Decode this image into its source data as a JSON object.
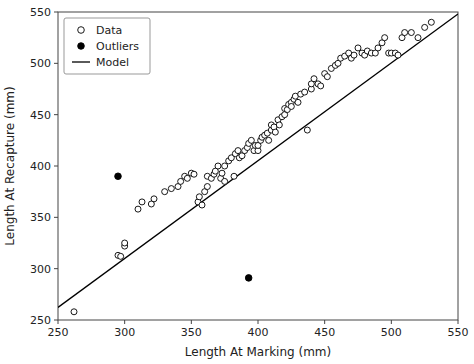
{
  "chart_data": {
    "type": "scatter",
    "xlabel": "Length At Marking (mm)",
    "ylabel": "Length At Recapture (mm)",
    "xlim": [
      250,
      550
    ],
    "ylim": [
      250,
      550
    ],
    "xticks": [
      250,
      300,
      350,
      400,
      450,
      500,
      550
    ],
    "yticks": [
      250,
      300,
      350,
      400,
      450,
      500,
      550
    ],
    "grid": false,
    "legend": "upper left",
    "series": [
      {
        "name": "Data",
        "type": "scatter",
        "marker": "open",
        "color": "black",
        "x": [
          262,
          295,
          297,
          300,
          300,
          310,
          313,
          320,
          322,
          330,
          335,
          340,
          342,
          345,
          347,
          350,
          352,
          355,
          356,
          358,
          360,
          362,
          362,
          365,
          367,
          368,
          370,
          372,
          373,
          375,
          375,
          378,
          380,
          382,
          383,
          385,
          386,
          388,
          390,
          392,
          393,
          395,
          397,
          398,
          400,
          400,
          402,
          403,
          405,
          407,
          408,
          410,
          410,
          412,
          413,
          415,
          416,
          418,
          420,
          420,
          422,
          423,
          425,
          425,
          427,
          428,
          430,
          432,
          435,
          437,
          440,
          440,
          442,
          445,
          447,
          450,
          452,
          455,
          458,
          460,
          462,
          465,
          468,
          470,
          472,
          475,
          478,
          480,
          482,
          485,
          488,
          490,
          493,
          495,
          498,
          500,
          503,
          505,
          508,
          510,
          515,
          520,
          525,
          530
        ],
        "values": [
          258,
          313,
          312,
          322,
          325,
          358,
          365,
          363,
          368,
          375,
          378,
          380,
          385,
          390,
          388,
          393,
          392,
          365,
          370,
          362,
          375,
          380,
          390,
          388,
          392,
          395,
          400,
          388,
          393,
          385,
          400,
          405,
          408,
          390,
          412,
          415,
          408,
          410,
          415,
          418,
          422,
          425,
          415,
          420,
          415,
          420,
          425,
          428,
          430,
          432,
          425,
          435,
          440,
          438,
          433,
          445,
          440,
          448,
          450,
          456,
          455,
          460,
          462,
          458,
          465,
          468,
          462,
          470,
          472,
          435,
          475,
          480,
          485,
          480,
          478,
          490,
          487,
          495,
          498,
          500,
          505,
          507,
          510,
          505,
          508,
          515,
          510,
          508,
          512,
          510,
          510,
          515,
          520,
          525,
          510,
          510,
          510,
          508,
          525,
          530,
          530,
          525,
          535,
          540
        ]
      },
      {
        "name": "Outliers",
        "type": "scatter",
        "marker": "filled",
        "color": "black",
        "x": [
          295,
          393
        ],
        "values": [
          390,
          291
        ]
      },
      {
        "name": "Model",
        "type": "line",
        "color": "black",
        "x": [
          250,
          550
        ],
        "values": [
          262.25,
          548.15
        ]
      }
    ]
  }
}
